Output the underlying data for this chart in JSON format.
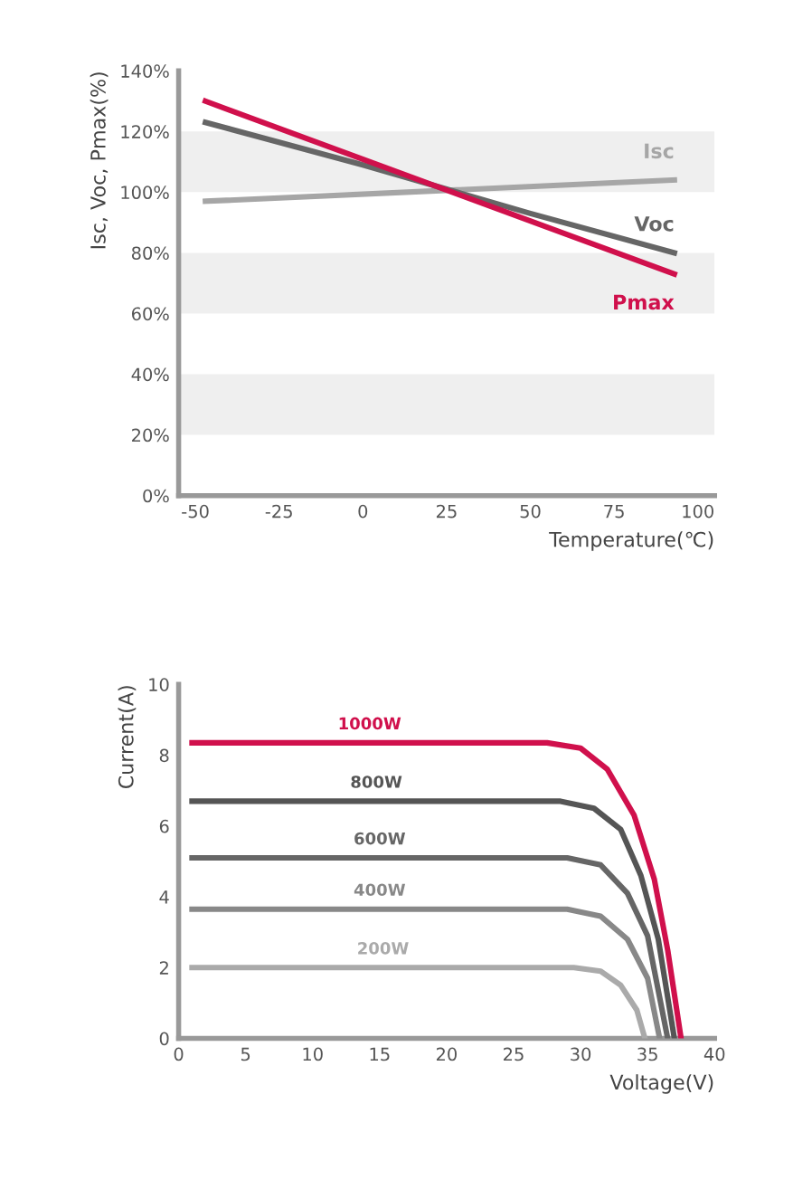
{
  "chart_data": [
    {
      "type": "line",
      "xlabel": "Temperature(℃)",
      "ylabel": "Isc, Voc, Pmax(%)",
      "xlim": [
        -55,
        105
      ],
      "xticks": [
        -50,
        -25,
        0,
        25,
        50,
        75,
        100
      ],
      "ylim": [
        0,
        140
      ],
      "yticks": [
        {
          "value": 0,
          "label": "0%"
        },
        {
          "value": 20,
          "label": "20%"
        },
        {
          "value": 40,
          "label": "40%"
        },
        {
          "value": 60,
          "label": "60%"
        },
        {
          "value": 80,
          "label": "80%"
        },
        {
          "value": 100,
          "label": "100%"
        },
        {
          "value": 120,
          "label": "120%"
        },
        {
          "value": 140,
          "label": "140%"
        }
      ],
      "bands": [
        {
          "axis": "y",
          "from": 20,
          "to": 40,
          "color": "#efefef"
        },
        {
          "axis": "y",
          "from": 60,
          "to": 80,
          "color": "#efefef"
        },
        {
          "axis": "y",
          "from": 100,
          "to": 120,
          "color": "#efefef"
        }
      ],
      "grid": false,
      "legend": false,
      "series": [
        {
          "name": "Isc",
          "color": "#a6a6a6",
          "x": [
            -47,
            93
          ],
          "values": [
            97,
            104
          ]
        },
        {
          "name": "Voc",
          "color": "#666666",
          "x": [
            -47,
            0,
            25,
            50,
            93
          ],
          "values": [
            123,
            109,
            101,
            93,
            80
          ]
        },
        {
          "name": "Pmax",
          "color": "#d0104c",
          "x": [
            -47,
            93
          ],
          "values": [
            130,
            73
          ]
        }
      ]
    },
    {
      "type": "line",
      "xlabel": "Voltage(V)",
      "ylabel": "Current(A)",
      "xlim": [
        0,
        40
      ],
      "xticks": [
        0,
        5,
        10,
        15,
        20,
        25,
        30,
        35,
        40
      ],
      "ylim": [
        0,
        10
      ],
      "yticks": [
        0,
        2,
        4,
        6,
        8,
        10
      ],
      "grid": false,
      "legend": false,
      "series": [
        {
          "name": "1000W",
          "color": "#d0104c",
          "x": [
            1,
            27.5,
            30,
            32,
            34,
            35.5,
            36.5,
            37.5
          ],
          "values": [
            8.35,
            8.35,
            8.2,
            7.6,
            6.3,
            4.5,
            2.5,
            0
          ]
        },
        {
          "name": "800W",
          "color": "#555555",
          "x": [
            1,
            28.5,
            31,
            33,
            34.5,
            35.8,
            37
          ],
          "values": [
            6.7,
            6.7,
            6.5,
            5.9,
            4.6,
            2.8,
            0
          ]
        },
        {
          "name": "600W",
          "color": "#666666",
          "x": [
            1,
            29,
            31.5,
            33.5,
            35,
            36.5
          ],
          "values": [
            5.1,
            5.1,
            4.9,
            4.1,
            2.9,
            0
          ]
        },
        {
          "name": "400W",
          "color": "#888888",
          "x": [
            1,
            29,
            31.5,
            33.5,
            35,
            35.9
          ],
          "values": [
            3.65,
            3.65,
            3.45,
            2.8,
            1.7,
            0
          ]
        },
        {
          "name": "200W",
          "color": "#aaaaaa",
          "x": [
            1,
            29.5,
            31.5,
            33,
            34.2,
            34.8
          ],
          "values": [
            2.0,
            2.0,
            1.9,
            1.5,
            0.8,
            0
          ]
        }
      ]
    }
  ]
}
